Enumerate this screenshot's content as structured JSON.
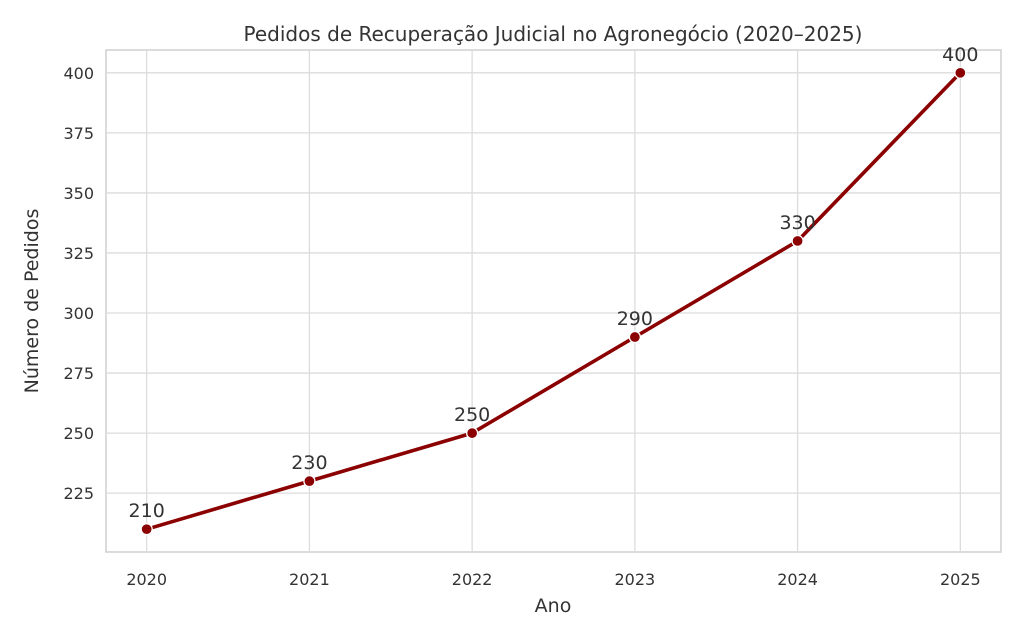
{
  "chart_data": {
    "type": "line",
    "title": "Pedidos de Recuperação Judicial no Agronegócio (2020–2025)",
    "xlabel": "Ano",
    "ylabel": "Número de Pedidos",
    "categories": [
      "2020",
      "2021",
      "2022",
      "2023",
      "2024",
      "2025"
    ],
    "x": [
      2020,
      2021,
      2022,
      2023,
      2024,
      2025
    ],
    "series": [
      {
        "values": [
          210,
          230,
          250,
          290,
          330,
          400
        ],
        "color": "#8b0000",
        "marker": "circle"
      }
    ],
    "data_labels": [
      "210",
      "230",
      "250",
      "290",
      "330",
      "400"
    ],
    "yticks": [
      225,
      250,
      275,
      300,
      325,
      350,
      375,
      400
    ],
    "ytick_labels": [
      "225",
      "250",
      "275",
      "300",
      "325",
      "350",
      "375",
      "400"
    ],
    "xlim": [
      2019.75,
      2025.25
    ],
    "ylim": [
      200.5,
      409.5
    ],
    "grid": true,
    "legend": "none"
  }
}
